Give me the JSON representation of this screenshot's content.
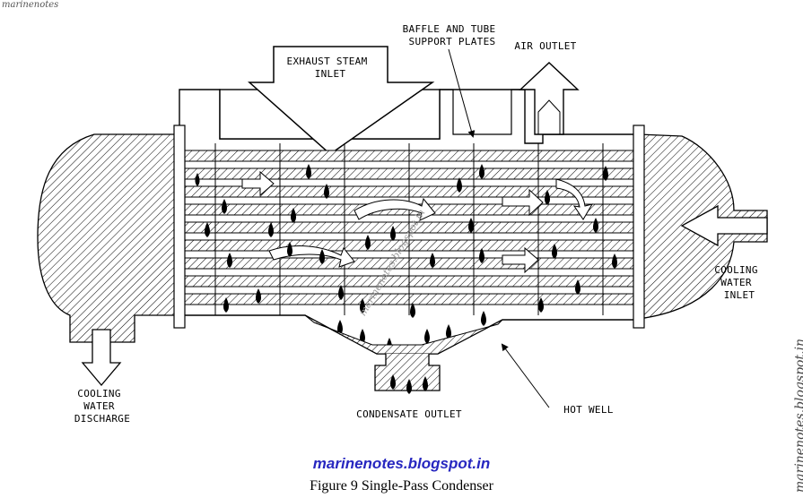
{
  "watermark_top": "marinenotes",
  "watermark_center": "marinenotes.blogspot.in",
  "watermark_side": "marinenotes.blogspot.in",
  "caption": "Figure 9   Single-Pass Condenser",
  "labels": {
    "exhaust_steam_inlet": [
      "EXHAUST STEAM",
      "INLET"
    ],
    "baffle_plates": [
      "BAFFLE AND TUBE",
      "SUPPORT PLATES"
    ],
    "air_outlet": [
      "AIR OUTLET"
    ],
    "cooling_water_inlet": [
      "COOLING",
      "WATER",
      "INLET"
    ],
    "cooling_water_discharge": [
      "COOLING",
      "WATER",
      "DISCHARGE"
    ],
    "condensate_outlet": [
      "CONDENSATE OUTLET"
    ],
    "hot_well": [
      "HOT WELL"
    ]
  }
}
